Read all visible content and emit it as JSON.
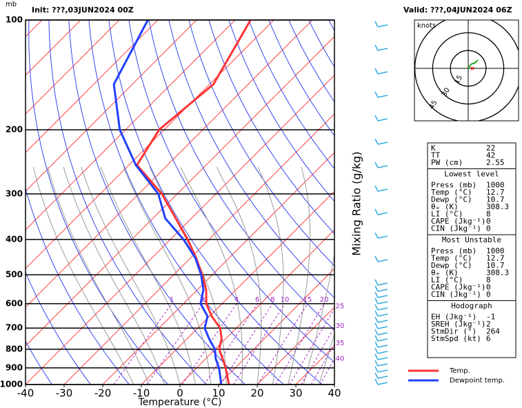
{
  "chart_data": {
    "type": "skewt",
    "init": "Init: ???,03JUN2024 00Z",
    "valid": "Valid: ???,04JUN2024 06Z",
    "unit_label": "mb",
    "x_label": "Temperature (°C)",
    "mixing_label": "Mixing Ratio (g/kg)",
    "xlim": [
      -40,
      40
    ],
    "xticks": [
      -40,
      -30,
      -20,
      -10,
      0,
      10,
      20,
      30,
      40
    ],
    "ylim": [
      1000,
      100
    ],
    "yticks": [
      1000,
      900,
      800,
      700,
      600,
      500,
      400,
      300,
      200,
      100
    ],
    "log_y": true,
    "series": [
      {
        "name": "Temp.",
        "color": "#ff3333",
        "pressure": [
          1000,
          900,
          850,
          800,
          750,
          700,
          650,
          600,
          550,
          500,
          450,
          400,
          350,
          300,
          250,
          200,
          150,
          100
        ],
        "values": [
          12.7,
          7.5,
          4.4,
          1,
          -1,
          -4.2,
          -9.4,
          -14.1,
          -17.7,
          -22.6,
          -28.5,
          -35.5,
          -44.1,
          -54,
          -67.9,
          -71.3,
          -69,
          -76
        ]
      },
      {
        "name": "Dewpoint temp.",
        "color": "#2040ff",
        "pressure": [
          1000,
          900,
          850,
          800,
          750,
          700,
          650,
          600,
          550,
          500,
          450,
          400,
          350,
          300,
          250,
          200,
          150,
          100
        ],
        "values": [
          10.7,
          5.8,
          2.6,
          -0.1,
          -4.2,
          -8.2,
          -10.5,
          -15.6,
          -18.4,
          -22.9,
          -28.7,
          -36.6,
          -46.8,
          -54.9,
          -68.2,
          -81.5,
          -94.8,
          -102.6
        ]
      }
    ],
    "mixing_ratio": [
      1,
      2,
      4,
      6,
      8,
      10,
      15,
      20,
      25,
      30,
      35,
      40
    ],
    "hodograph": {
      "label": "knots",
      "rings": [
        15,
        30,
        45
      ]
    },
    "indices": [
      [
        "K",
        22
      ],
      [
        "TT",
        42
      ],
      [
        "PW (cm)",
        2.55
      ]
    ],
    "lowest_level": {
      "title": "Lowest level",
      "rows": [
        [
          "Press (mb)",
          1000
        ],
        [
          "Temp (°C)",
          12.7
        ],
        [
          "Dewp (°C)",
          10.7
        ],
        [
          "θₑ (K)",
          308.3
        ],
        [
          "LI (°C)",
          8
        ],
        [
          "CAPE (Jkg⁻¹)",
          0
        ],
        [
          "CIN (Jkg⁻¹)",
          0
        ]
      ]
    },
    "most_unstable": {
      "title": "Most Unstable",
      "rows": [
        [
          "Press (mb)",
          1000
        ],
        [
          "Temp (°C)",
          12.7
        ],
        [
          "Dewp (°C)",
          10.7
        ],
        [
          "θₑ (K)",
          308.3
        ],
        [
          "LI (°C)",
          8
        ],
        [
          "CAPE (Jkg⁻¹)",
          0
        ],
        [
          "CIN (Jkg⁻¹)",
          0
        ]
      ]
    },
    "hodograph_params": {
      "title": "Hodograph",
      "rows": [
        [
          "EH (Jkg⁻¹)",
          -1
        ],
        [
          "SREH (Jkg⁻¹)",
          2
        ],
        [
          "StmDir (°)",
          264
        ],
        [
          "StmSpd (kt)",
          6
        ]
      ]
    }
  }
}
